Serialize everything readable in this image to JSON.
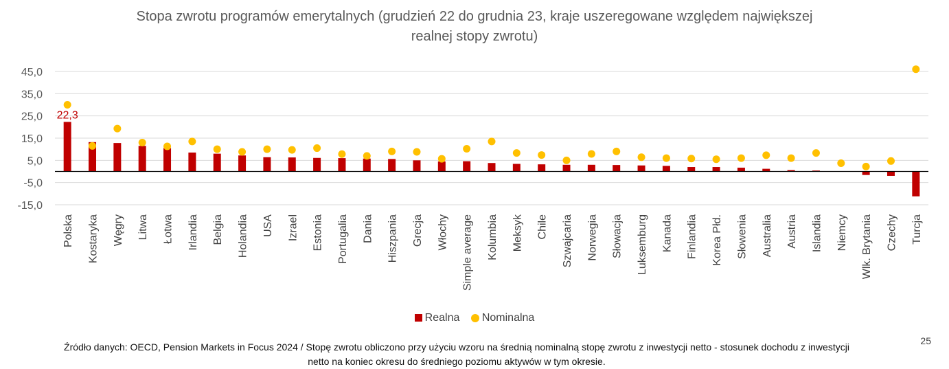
{
  "slide": {
    "title_line1": "Stopa zwrotu programów emerytalnych (grudzień 22 do grudnia 23, kraje uszeregowane względem największej",
    "title_line2": "realnej stopy zwrotu)",
    "footnote_line1": "Źródło danych: OECD, Pension Markets in Focus 2024 / Stopę zwrotu obliczono przy użyciu wzoru na średnią nominalną stopę zwrotu z inwestycji netto  - stosunek dochodu z inwestycji",
    "footnote_line2": "netto na koniec okresu do średniego poziomu aktywów w tym okresie.",
    "page_number": "25"
  },
  "chart_data": {
    "type": "bar",
    "title": "Stopa zwrotu programów emerytalnych (grudzień 22 do grudnia 23, kraje uszeregowane względem największej realnej stopy zwrotu)",
    "categories": [
      "Polska",
      "Kostaryka",
      "Węgry",
      "Litwa",
      "Łotwa",
      "Irlandia",
      "Belgia",
      "Holandia",
      "USA",
      "Izrael",
      "Estonia",
      "Portugalia",
      "Dania",
      "Hiszpania",
      "Grecja",
      "Włochy",
      "Simple average",
      "Kolumbia",
      "Meksyk",
      "Chile",
      "Szwajcaria",
      "Norwegia",
      "Słowacja",
      "Luksemburg",
      "Kanada",
      "Finlandia",
      "Korea Płd.",
      "Słowenia",
      "Australia",
      "Austria",
      "Islandia",
      "Niemcy",
      "Wlk. Brytania",
      "Czechy",
      "Turcja"
    ],
    "series": [
      {
        "name": "Realna",
        "type": "bar",
        "color": "#C00000",
        "values": [
          22.3,
          13.2,
          12.8,
          11.5,
          10.5,
          8.5,
          8.0,
          7.2,
          6.4,
          6.3,
          6.1,
          6.0,
          5.8,
          5.6,
          5.0,
          4.5,
          4.6,
          3.8,
          3.4,
          3.2,
          3.0,
          3.0,
          2.9,
          2.7,
          2.5,
          2.0,
          2.0,
          1.7,
          1.2,
          0.6,
          0.4,
          0.0,
          -1.6,
          -2.0,
          -11.2
        ]
      },
      {
        "name": "Nominalna",
        "type": "scatter",
        "color": "#FFC000",
        "values": [
          30.0,
          11.5,
          19.3,
          13.0,
          11.3,
          13.5,
          10.0,
          8.8,
          10.0,
          9.7,
          10.5,
          7.8,
          7.0,
          9.0,
          8.8,
          5.7,
          10.2,
          13.5,
          8.3,
          7.4,
          5.0,
          7.9,
          9.0,
          6.4,
          6.0,
          5.8,
          5.5,
          6.0,
          7.3,
          6.0,
          8.3,
          3.7,
          2.2,
          4.7,
          46.0
        ]
      }
    ],
    "data_labels": [
      {
        "series": "Realna",
        "category": "Polska",
        "text": "22,3"
      }
    ],
    "y_tick_labels": [
      "45,0",
      "35,0",
      "25,0",
      "15,0",
      "5,0",
      "-5,0",
      "-15,0"
    ],
    "y_ticks": [
      45,
      35,
      25,
      15,
      5,
      -5,
      -15
    ],
    "ylim": [
      -15,
      45
    ],
    "grid": true,
    "legend": [
      "Realna",
      "Nominalna"
    ],
    "legend_position": "bottom"
  }
}
